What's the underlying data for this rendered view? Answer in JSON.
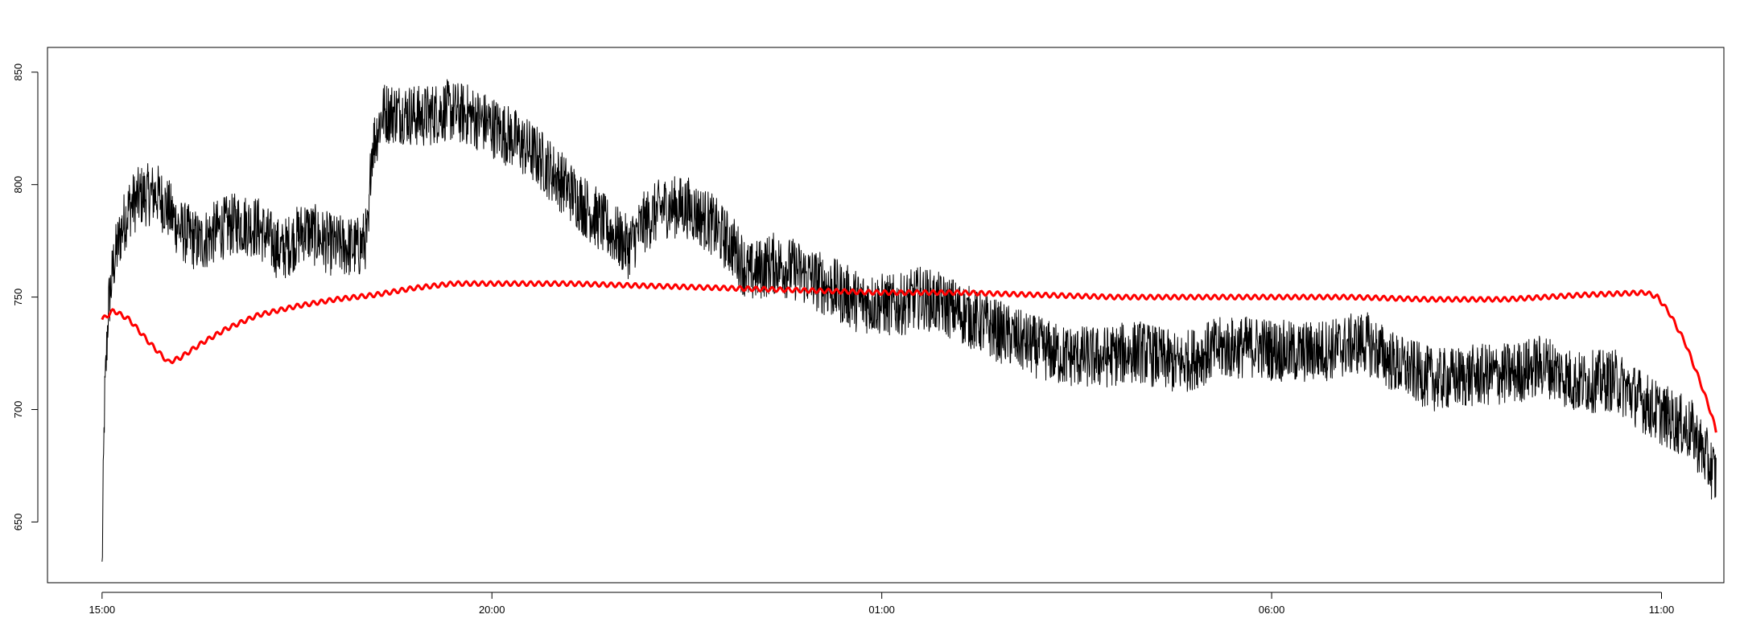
{
  "chart_data": {
    "type": "line",
    "title": "",
    "xlabel": "",
    "ylabel": "",
    "x_ticks": [
      "15:00",
      "20:00",
      "01:00",
      "06:00",
      "11:00"
    ],
    "y_ticks": [
      650,
      700,
      750,
      800,
      850
    ],
    "xlim_hours": [
      14.3,
      35.8
    ],
    "ylim": [
      623,
      861
    ],
    "grid": false,
    "legend": "none",
    "series": [
      {
        "color": "#000000",
        "line_width": 1,
        "noise_amplitude": 14,
        "points": [
          [
            15.0,
            628
          ],
          [
            15.03,
            700
          ],
          [
            15.08,
            745
          ],
          [
            15.15,
            765
          ],
          [
            15.25,
            780
          ],
          [
            15.35,
            790
          ],
          [
            15.5,
            795
          ],
          [
            15.7,
            796
          ],
          [
            15.85,
            789
          ],
          [
            16.0,
            780
          ],
          [
            16.25,
            774
          ],
          [
            16.5,
            780
          ],
          [
            16.75,
            783
          ],
          [
            17.0,
            781
          ],
          [
            17.3,
            770
          ],
          [
            17.6,
            780
          ],
          [
            17.95,
            773
          ],
          [
            18.3,
            772
          ],
          [
            18.42,
            778
          ],
          [
            18.45,
            815
          ],
          [
            18.6,
            832
          ],
          [
            18.85,
            832
          ],
          [
            19.1,
            830
          ],
          [
            19.4,
            833
          ],
          [
            19.7,
            831
          ],
          [
            20.0,
            826
          ],
          [
            20.3,
            820
          ],
          [
            20.6,
            812
          ],
          [
            20.9,
            801
          ],
          [
            21.2,
            790
          ],
          [
            21.5,
            780
          ],
          [
            21.75,
            772
          ],
          [
            21.95,
            783
          ],
          [
            22.2,
            790
          ],
          [
            22.5,
            790
          ],
          [
            22.8,
            783
          ],
          [
            23.1,
            772
          ],
          [
            23.3,
            760
          ],
          [
            23.6,
            765
          ],
          [
            23.9,
            762
          ],
          [
            24.3,
            755
          ],
          [
            24.7,
            748
          ],
          [
            25.2,
            746
          ],
          [
            25.5,
            750
          ],
          [
            25.9,
            745
          ],
          [
            26.3,
            738
          ],
          [
            26.8,
            730
          ],
          [
            27.3,
            724
          ],
          [
            27.8,
            723
          ],
          [
            28.3,
            726
          ],
          [
            28.8,
            720
          ],
          [
            29.3,
            727
          ],
          [
            29.8,
            728
          ],
          [
            30.3,
            725
          ],
          [
            30.8,
            727
          ],
          [
            31.2,
            730
          ],
          [
            31.6,
            720
          ],
          [
            32.1,
            713
          ],
          [
            32.6,
            715
          ],
          [
            33.1,
            716
          ],
          [
            33.5,
            720
          ],
          [
            33.9,
            712
          ],
          [
            34.4,
            713
          ],
          [
            34.9,
            700
          ],
          [
            35.4,
            690
          ],
          [
            35.7,
            670
          ]
        ]
      },
      {
        "color": "#ff0000",
        "line_width": 3,
        "noise_amplitude": 1,
        "points": [
          [
            15.0,
            740
          ],
          [
            15.15,
            744
          ],
          [
            15.35,
            740
          ],
          [
            15.6,
            730
          ],
          [
            15.85,
            721
          ],
          [
            16.0,
            723
          ],
          [
            16.3,
            730
          ],
          [
            16.6,
            736
          ],
          [
            17.0,
            742
          ],
          [
            17.5,
            746
          ],
          [
            18.0,
            749
          ],
          [
            18.5,
            751
          ],
          [
            19.0,
            754
          ],
          [
            19.5,
            756
          ],
          [
            20.0,
            756
          ],
          [
            21.0,
            756
          ],
          [
            22.0,
            755
          ],
          [
            23.0,
            754
          ],
          [
            24.0,
            753
          ],
          [
            25.0,
            752
          ],
          [
            26.0,
            752
          ],
          [
            27.0,
            751
          ],
          [
            28.0,
            750
          ],
          [
            29.0,
            750
          ],
          [
            30.0,
            750
          ],
          [
            31.0,
            750
          ],
          [
            32.0,
            749
          ],
          [
            33.0,
            749
          ],
          [
            34.0,
            751
          ],
          [
            34.8,
            752
          ],
          [
            34.95,
            750
          ],
          [
            35.1,
            743
          ],
          [
            35.3,
            730
          ],
          [
            35.5,
            712
          ],
          [
            35.65,
            697
          ],
          [
            35.7,
            690
          ]
        ]
      }
    ]
  }
}
